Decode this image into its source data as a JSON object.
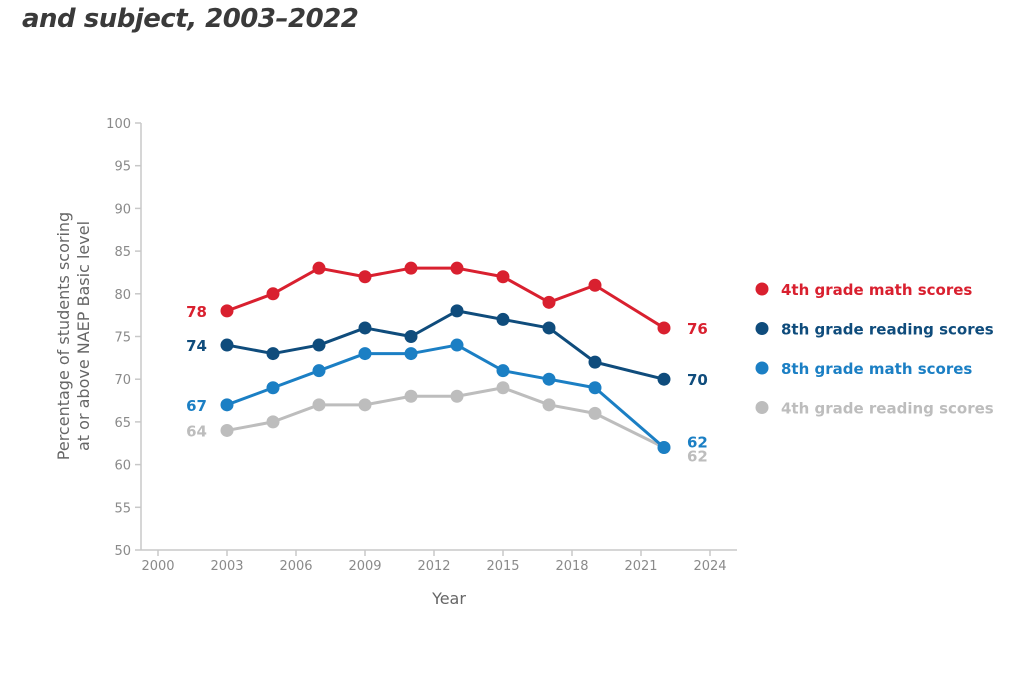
{
  "header": {
    "title": "and subject, 2003–2022"
  },
  "chart_data": {
    "type": "line",
    "title": "and subject, 2003–2022",
    "xlabel": "Year",
    "ylabel": [
      "Percentage of students scoring",
      "at or above NAEP Basic level"
    ],
    "xlim": [
      2000,
      2024
    ],
    "ylim": [
      50,
      100
    ],
    "xticks": [
      2000,
      2003,
      2006,
      2009,
      2012,
      2015,
      2018,
      2021,
      2024
    ],
    "yticks": [
      50,
      55,
      60,
      65,
      70,
      75,
      80,
      85,
      90,
      95,
      100
    ],
    "grid": false,
    "legend_position": "right",
    "x": [
      2003,
      2005,
      2007,
      2009,
      2011,
      2013,
      2015,
      2017,
      2019,
      2022
    ],
    "series": [
      {
        "name": "4th grade math scores",
        "color": "#d9202f",
        "values": [
          78,
          80,
          83,
          82,
          83,
          83,
          82,
          79,
          81,
          76
        ],
        "start_label": "78",
        "end_label": "76"
      },
      {
        "name": "8th grade reading scores",
        "color": "#0f4c7c",
        "values": [
          74,
          73,
          74,
          76,
          75,
          78,
          77,
          76,
          72,
          70
        ],
        "start_label": "74",
        "end_label": "70"
      },
      {
        "name": "8th grade math scores",
        "color": "#1b7fc4",
        "values": [
          67,
          69,
          71,
          73,
          73,
          74,
          71,
          70,
          69,
          62
        ],
        "start_label": "67",
        "end_label": "62"
      },
      {
        "name": "4th grade reading scores",
        "color": "#bdbdbd",
        "values": [
          64,
          65,
          67,
          67,
          68,
          68,
          69,
          67,
          66,
          62
        ],
        "start_label": "64",
        "end_label": "62"
      }
    ]
  }
}
